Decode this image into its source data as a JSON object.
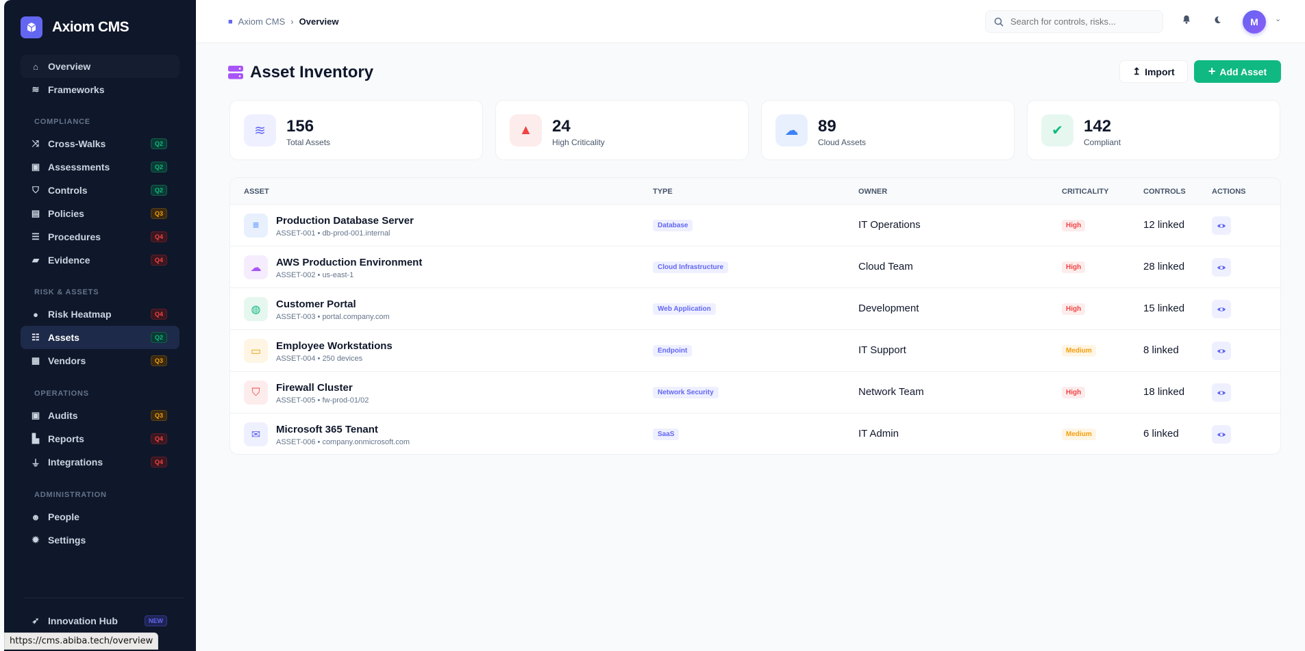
{
  "app": {
    "name": "Axiom CMS"
  },
  "sidebar": {
    "top": [
      {
        "label": "Overview",
        "icon": "home-icon"
      },
      {
        "label": "Frameworks",
        "icon": "layers-icon"
      }
    ],
    "sections": [
      {
        "title": "COMPLIANCE",
        "items": [
          {
            "label": "Cross-Walks",
            "badge": "Q2",
            "icon": "shuffle-icon"
          },
          {
            "label": "Assessments",
            "badge": "Q2",
            "icon": "clipboard-check-icon"
          },
          {
            "label": "Controls",
            "badge": "Q2",
            "icon": "shield-icon"
          },
          {
            "label": "Policies",
            "badge": "Q3",
            "icon": "file-icon"
          },
          {
            "label": "Procedures",
            "badge": "Q4",
            "icon": "list-check-icon"
          },
          {
            "label": "Evidence",
            "badge": "Q4",
            "icon": "folder-open-icon"
          }
        ]
      },
      {
        "title": "RISK & ASSETS",
        "items": [
          {
            "label": "Risk Heatmap",
            "badge": "Q4",
            "icon": "fire-icon"
          },
          {
            "label": "Assets",
            "badge": "Q2",
            "icon": "server-icon",
            "active": true
          },
          {
            "label": "Vendors",
            "badge": "Q3",
            "icon": "building-icon"
          }
        ]
      },
      {
        "title": "OPERATIONS",
        "items": [
          {
            "label": "Audits",
            "badge": "Q3",
            "icon": "clipboard-list-icon"
          },
          {
            "label": "Reports",
            "badge": "Q4",
            "icon": "chart-bar-icon"
          },
          {
            "label": "Integrations",
            "badge": "Q4",
            "icon": "plug-icon"
          }
        ]
      },
      {
        "title": "ADMINISTRATION",
        "items": [
          {
            "label": "People",
            "icon": "users-icon"
          },
          {
            "label": "Settings",
            "icon": "gear-icon"
          }
        ]
      }
    ],
    "footer": {
      "label": "Innovation Hub",
      "badge": "NEW",
      "icon": "rocket-icon"
    }
  },
  "status_url": "https://cms.abiba.tech/overview",
  "header": {
    "breadcrumb": [
      "Axiom CMS",
      "Overview"
    ],
    "search_placeholder": "Search for controls, risks...",
    "avatar_initial": "M"
  },
  "page": {
    "title": "Asset Inventory",
    "import_label": "Import",
    "add_label": "Add Asset"
  },
  "stats": [
    {
      "value": "156",
      "label": "Total Assets",
      "icon": "layers-icon",
      "color": "#6366f1",
      "bg": "#eef0ff"
    },
    {
      "value": "24",
      "label": "High Criticality",
      "icon": "warning-icon",
      "color": "#ef4444",
      "bg": "#fdecec"
    },
    {
      "value": "89",
      "label": "Cloud Assets",
      "icon": "cloud-icon",
      "color": "#3b82f6",
      "bg": "#e8f0fe"
    },
    {
      "value": "142",
      "label": "Compliant",
      "icon": "check-circle-icon",
      "color": "#10b981",
      "bg": "#e6f7f0"
    }
  ],
  "table": {
    "columns": [
      "ASSET",
      "TYPE",
      "OWNER",
      "CRITICALITY",
      "CONTROLS",
      "ACTIONS"
    ],
    "rows": [
      {
        "name": "Production Database Server",
        "sub": "ASSET-001 • db-prod-001.internal",
        "type": "Database",
        "owner": "IT Operations",
        "criticality": "High",
        "controls": "12 linked",
        "icon": "database-icon",
        "color": "#3b82f6",
        "bg": "#e8f0fe"
      },
      {
        "name": "AWS Production Environment",
        "sub": "ASSET-002 • us-east-1",
        "type": "Cloud Infrastructure",
        "owner": "Cloud Team",
        "criticality": "High",
        "controls": "28 linked",
        "icon": "cloud-icon",
        "color": "#a855f7",
        "bg": "#f5ecfe"
      },
      {
        "name": "Customer Portal",
        "sub": "ASSET-003 • portal.company.com",
        "type": "Web Application",
        "owner": "Development",
        "criticality": "High",
        "controls": "15 linked",
        "icon": "globe-icon",
        "color": "#10b981",
        "bg": "#e6f7f0"
      },
      {
        "name": "Employee Workstations",
        "sub": "ASSET-004 • 250 devices",
        "type": "Endpoint",
        "owner": "IT Support",
        "criticality": "Medium",
        "controls": "8 linked",
        "icon": "laptop-icon",
        "color": "#f59e0b",
        "bg": "#fef5e4"
      },
      {
        "name": "Firewall Cluster",
        "sub": "ASSET-005 • fw-prod-01/02",
        "type": "Network Security",
        "owner": "Network Team",
        "criticality": "High",
        "controls": "18 linked",
        "icon": "shield-icon",
        "color": "#ef4444",
        "bg": "#fdecec"
      },
      {
        "name": "Microsoft 365 Tenant",
        "sub": "ASSET-006 • company.onmicrosoft.com",
        "type": "SaaS",
        "owner": "IT Admin",
        "criticality": "Medium",
        "controls": "6 linked",
        "icon": "envelope-icon",
        "color": "#6366f1",
        "bg": "#eef0ff"
      }
    ]
  }
}
